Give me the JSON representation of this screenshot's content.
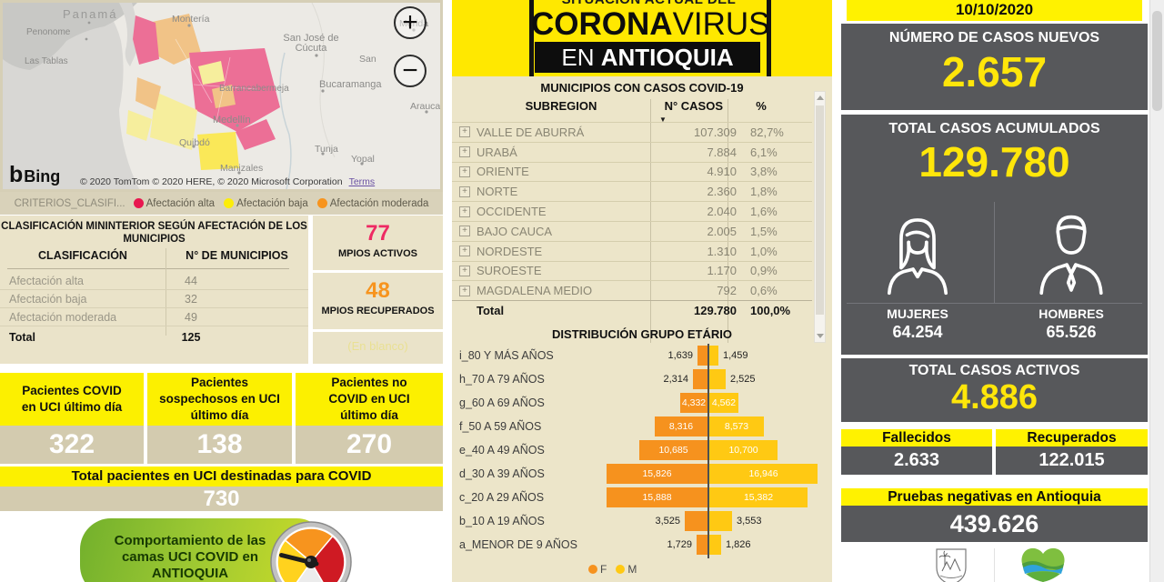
{
  "map": {
    "bing_logo_glyph": "b",
    "bing_label": "Bing",
    "attribution": "© 2020 TomTom © 2020 HERE, © 2020 Microsoft Corporation",
    "terms_label": "Terms",
    "zoom_in": "+",
    "zoom_out": "−",
    "labels": [
      "Panamá",
      "Penonome",
      "Las Tablas",
      "Montería",
      "San José de Cúcuta",
      "San",
      "Mérida",
      "Bucaramanga",
      "Barrancabermeja",
      "Medellín",
      "Quibdó",
      "Manizales",
      "Tunja",
      "Yopal",
      "Arauca"
    ]
  },
  "map_legend": {
    "title": "CRITERIOS_CLASIFI...",
    "items": [
      {
        "label": "Afectación alta",
        "color": "#e8174f"
      },
      {
        "label": "Afectación baja",
        "color": "#fced0a"
      },
      {
        "label": "Afectación moderada",
        "color": "#f7941e"
      }
    ]
  },
  "classification": {
    "title": "CLASIFICACIÓN MININTERIOR SEGÚN AFECTACIÓN DE LOS MUNICIPIOS",
    "columns": [
      "CLASIFICACIÓN",
      "N° DE MUNICIPIOS"
    ],
    "rows": [
      {
        "label": "Afectación alta",
        "value": "44"
      },
      {
        "label": "Afectación baja",
        "value": "32"
      },
      {
        "label": "Afectación moderada",
        "value": "49"
      }
    ],
    "total_label": "Total",
    "total_value": "125"
  },
  "mpios": {
    "activos_value": "77",
    "activos_label": "MPIOS ACTIVOS",
    "recuperados_value": "48",
    "recuperados_label": "MPIOS RECUPERADOS",
    "blank_label": "(En blanco)"
  },
  "uci": {
    "cards": [
      {
        "title": "Pacientes COVID en UCI último día",
        "value": "322"
      },
      {
        "title": "Pacientes sospechosos en UCI último día",
        "value": "138"
      },
      {
        "title": "Pacientes no COVID en UCI último día",
        "value": "270"
      }
    ],
    "total_title": "Total pacientes en UCI destinadas para COVID",
    "total_value": "730"
  },
  "uci_banner": {
    "text": "Comportamiento de las camas UCI COVID en ANTIOQUIA"
  },
  "header": {
    "line1": "SITUACIÓN ACTUAL DEL",
    "line2_bold": "CORONA",
    "line2_light": "VIRUS",
    "line3_prefix": "EN ",
    "line3_bold": "ANTIOQUIA"
  },
  "subregions": {
    "title": "MUNICIPIOS CON CASOS COVID-19",
    "columns": [
      "SUBREGION",
      "N° CASOS",
      "%"
    ],
    "sort_indicator": "▼",
    "expand_icon": "+",
    "rows": [
      {
        "name": "VALLE DE ABURRÁ",
        "cases": "107.309",
        "pct": "82,7%"
      },
      {
        "name": "URABÁ",
        "cases": "7.884",
        "pct": "6,1%"
      },
      {
        "name": "ORIENTE",
        "cases": "4.910",
        "pct": "3,8%"
      },
      {
        "name": "NORTE",
        "cases": "2.360",
        "pct": "1,8%"
      },
      {
        "name": "OCCIDENTE",
        "cases": "2.040",
        "pct": "1,6%"
      },
      {
        "name": "BAJO CAUCA",
        "cases": "2.005",
        "pct": "1,5%"
      },
      {
        "name": "NORDESTE",
        "cases": "1.310",
        "pct": "1,0%"
      },
      {
        "name": "SUROESTE",
        "cases": "1.170",
        "pct": "0,9%"
      },
      {
        "name": "MAGDALENA MEDIO",
        "cases": "792",
        "pct": "0,6%"
      }
    ],
    "total_label": "Total",
    "total_cases": "129.780",
    "total_pct": "100,0%"
  },
  "chart_data": {
    "type": "bar",
    "orientation": "population-pyramid",
    "title": "DISTRIBUCIÓN GRUPO ETÁRIO",
    "categories": [
      "i_80 Y MÁS AÑOS",
      "h_70 A 79 AÑOS",
      "g_60 A 69 AÑOS",
      "f_50 A 59 AÑOS",
      "e_40 A 49 AÑOS",
      "d_30 A 39 AÑOS",
      "c_20 A 29 AÑOS",
      "b_10 A 19 AÑOS",
      "a_MENOR DE 9 AÑOS"
    ],
    "series": [
      {
        "name": "F",
        "color": "#f6921e",
        "values": [
          1639,
          2314,
          4332,
          8316,
          10685,
          15826,
          15888,
          3525,
          1729
        ],
        "labels": [
          "1,639",
          "2,314",
          "4,332",
          "8,316",
          "10,685",
          "15,826",
          "15,888",
          "3,525",
          "1,729"
        ]
      },
      {
        "name": "M",
        "color": "#ffc913",
        "values": [
          1459,
          2525,
          4562,
          8573,
          10700,
          16946,
          15382,
          3553,
          1826
        ],
        "labels": [
          "1,459",
          "2,525",
          "4,562",
          "8,573",
          "10,700",
          "16,946",
          "15,382",
          "3,553",
          "1,826"
        ]
      }
    ],
    "legend_position": "bottom",
    "xlim": [
      0,
      17000
    ]
  },
  "stats": {
    "date": "10/10/2020",
    "new_cases_label": "NÚMERO DE CASOS NUEVOS",
    "new_cases_value": "2.657",
    "total_label": "TOTAL CASOS ACUMULADOS",
    "total_value": "129.780",
    "women_label": "MUJERES",
    "women_value": "64.254",
    "men_label": "HOMBRES",
    "men_value": "65.526",
    "active_label": "TOTAL CASOS ACTIVOS",
    "active_value": "4.886",
    "deaths_label": "Fallecidos",
    "deaths_value": "2.633",
    "recovered_label": "Recuperados",
    "recovered_value": "122.015",
    "negative_label": "Pruebas negativas en Antioquia",
    "negative_value": "439.626"
  },
  "colors": {
    "accent_yellow": "#fff200",
    "panel_dark": "#57585b",
    "pink_accent": "#ee2a63",
    "orange_accent": "#f7941e",
    "cream_bg": "#ece5c9"
  }
}
